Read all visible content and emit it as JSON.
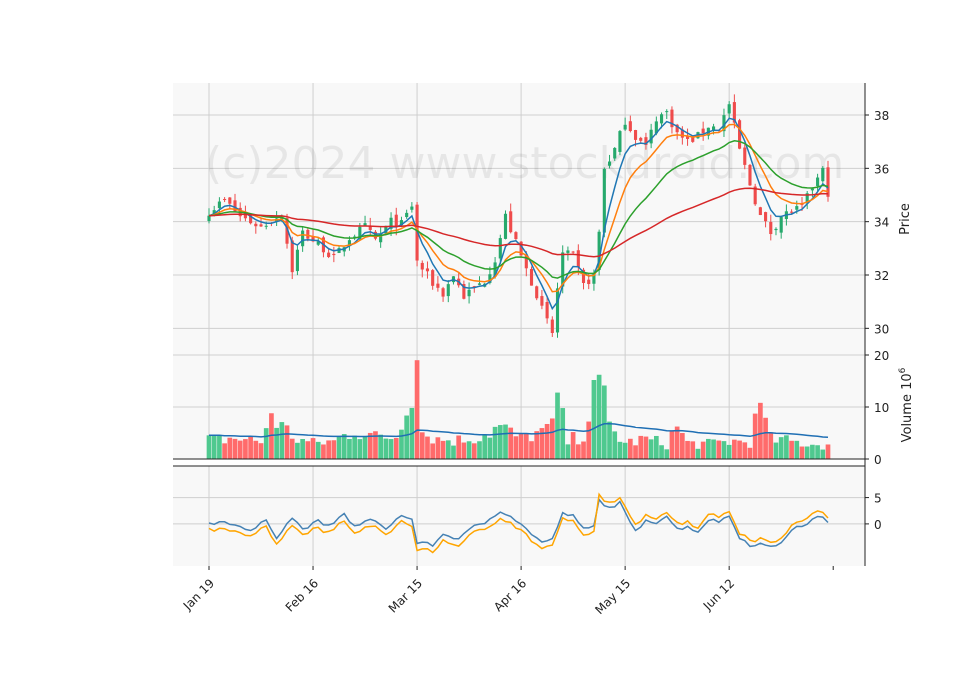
{
  "watermark": "(c)2024 www.stockdroid.com",
  "colors": {
    "panel_bg": "#f8f8f8",
    "grid": "#cfcfcf",
    "up": "#26a96c",
    "down": "#ef4b4b",
    "up_volume": "#4fc98f",
    "down_volume": "#ff6b6b",
    "ma_fast": "#1f77b4",
    "ma_mid": "#ff7f0e",
    "ma_slow": "#2ca02c",
    "ma_long": "#d62728",
    "volume_avg": "#1f6fb4",
    "osc_1": "#4682b4",
    "osc_2": "#ffa500"
  },
  "chart_data": {
    "type": "candlestick",
    "x_tick_labels": [
      "Jan 19",
      "Feb 16",
      "Mar 15",
      "Apr 16",
      "May 15",
      "Jun 12"
    ],
    "x_tick_index": [
      0,
      20,
      40,
      60,
      80,
      100
    ],
    "n_bars": 120,
    "price_panel": {
      "ylabel": "Price",
      "ylim": [
        29.0,
        39.2
      ],
      "yticks": [
        "30",
        "32",
        "34",
        "36",
        "38"
      ],
      "ytick_values": [
        30,
        32,
        34,
        36,
        38
      ]
    },
    "volume_panel": {
      "ylabel": "Volume  10",
      "ylabel_exponent": "6",
      "ylim": [
        0,
        20
      ],
      "yticks": [
        "0",
        "10",
        "20"
      ],
      "ytick_values": [
        0,
        10,
        20
      ]
    },
    "osc_panel": {
      "ylim": [
        -8,
        11
      ],
      "yticks": [
        "0",
        "5"
      ],
      "ytick_values": [
        0,
        5
      ]
    },
    "close_anchors": [
      [
        0,
        34.4
      ],
      [
        3,
        34.8
      ],
      [
        6,
        34.2
      ],
      [
        10,
        33.8
      ],
      [
        14,
        34.3
      ],
      [
        15,
        33.2
      ],
      [
        16,
        32.2
      ],
      [
        18,
        33.6
      ],
      [
        20,
        33.3
      ],
      [
        22,
        33.0
      ],
      [
        24,
        32.6
      ],
      [
        27,
        33.4
      ],
      [
        30,
        33.8
      ],
      [
        32,
        33.3
      ],
      [
        35,
        34.0
      ],
      [
        37,
        33.9
      ],
      [
        39,
        34.6
      ],
      [
        40,
        32.5
      ],
      [
        43,
        31.7
      ],
      [
        45,
        31.3
      ],
      [
        47,
        32.0
      ],
      [
        49,
        31.2
      ],
      [
        51,
        31.5
      ],
      [
        53,
        31.8
      ],
      [
        55,
        32.6
      ],
      [
        57,
        34.2
      ],
      [
        59,
        33.2
      ],
      [
        61,
        32.2
      ],
      [
        63,
        31.3
      ],
      [
        64,
        30.7
      ],
      [
        66,
        29.8
      ],
      [
        67,
        31.5
      ],
      [
        68,
        32.8
      ],
      [
        70,
        32.7
      ],
      [
        72,
        31.6
      ],
      [
        74,
        32.0
      ],
      [
        75,
        33.6
      ],
      [
        76,
        36.0
      ],
      [
        78,
        36.7
      ],
      [
        80,
        37.8
      ],
      [
        82,
        37.2
      ],
      [
        84,
        36.8
      ],
      [
        86,
        37.9
      ],
      [
        88,
        38.1
      ],
      [
        90,
        37.3
      ],
      [
        92,
        37.0
      ],
      [
        94,
        37.2
      ],
      [
        96,
        37.6
      ],
      [
        98,
        37.5
      ],
      [
        100,
        38.4
      ],
      [
        102,
        36.7
      ],
      [
        104,
        35.4
      ],
      [
        106,
        34.2
      ],
      [
        108,
        33.6
      ],
      [
        110,
        34.2
      ],
      [
        112,
        34.4
      ],
      [
        114,
        34.5
      ],
      [
        116,
        35.3
      ],
      [
        118,
        35.9
      ],
      [
        119,
        35.1
      ]
    ],
    "volume_anchors": [
      [
        0,
        3.8
      ],
      [
        5,
        4.2
      ],
      [
        10,
        3.5
      ],
      [
        12,
        9.0
      ],
      [
        14,
        6.5
      ],
      [
        17,
        4.0
      ],
      [
        20,
        3.2
      ],
      [
        24,
        3.6
      ],
      [
        28,
        6.0
      ],
      [
        32,
        4.4
      ],
      [
        36,
        4.6
      ],
      [
        40,
        19.0
      ],
      [
        41,
        5.5
      ],
      [
        44,
        4.0
      ],
      [
        48,
        3.8
      ],
      [
        52,
        4.6
      ],
      [
        56,
        6.5
      ],
      [
        60,
        4.0
      ],
      [
        62,
        5.0
      ],
      [
        65,
        5.5
      ],
      [
        67,
        10.0
      ],
      [
        69,
        3.5
      ],
      [
        72,
        5.0
      ],
      [
        75,
        16.5
      ],
      [
        77,
        6.5
      ],
      [
        80,
        3.2
      ],
      [
        84,
        4.0
      ],
      [
        88,
        3.0
      ],
      [
        90,
        6.5
      ],
      [
        92,
        3.2
      ],
      [
        96,
        3.0
      ],
      [
        100,
        3.6
      ],
      [
        104,
        3.5
      ],
      [
        106,
        11.0
      ],
      [
        108,
        4.0
      ],
      [
        112,
        3.5
      ],
      [
        116,
        3.0
      ],
      [
        119,
        2.8
      ]
    ],
    "big_volume_bars": [
      [
        40,
        19.0
      ],
      [
        75,
        16.2
      ],
      [
        106,
        10.8
      ],
      [
        68,
        9.8
      ],
      [
        12,
        8.8
      ]
    ],
    "osc_anchors": [
      [
        0,
        0.0
      ],
      [
        3,
        0.5
      ],
      [
        6,
        -0.5
      ],
      [
        8,
        -1.5
      ],
      [
        11,
        0.8
      ],
      [
        13,
        -2.5
      ],
      [
        16,
        1.2
      ],
      [
        18,
        -1.0
      ],
      [
        21,
        0.5
      ],
      [
        23,
        -0.5
      ],
      [
        26,
        1.8
      ],
      [
        28,
        -0.5
      ],
      [
        31,
        0.8
      ],
      [
        34,
        -0.8
      ],
      [
        37,
        1.6
      ],
      [
        39,
        0.8
      ],
      [
        40,
        -3.5
      ],
      [
        43,
        -4.0
      ],
      [
        45,
        -2.0
      ],
      [
        48,
        -2.8
      ],
      [
        51,
        -0.5
      ],
      [
        53,
        0.2
      ],
      [
        56,
        2.5
      ],
      [
        58,
        1.5
      ],
      [
        61,
        -1.0
      ],
      [
        64,
        -3.5
      ],
      [
        66,
        -3.0
      ],
      [
        68,
        2.0
      ],
      [
        70,
        1.5
      ],
      [
        72,
        -1.0
      ],
      [
        74,
        -0.5
      ],
      [
        75,
        4.5
      ],
      [
        77,
        3.0
      ],
      [
        79,
        4.0
      ],
      [
        80,
        2.0
      ],
      [
        82,
        -1.5
      ],
      [
        84,
        0.8
      ],
      [
        86,
        0.3
      ],
      [
        88,
        1.5
      ],
      [
        90,
        -1.0
      ],
      [
        92,
        -0.5
      ],
      [
        94,
        -1.5
      ],
      [
        96,
        0.8
      ],
      [
        98,
        0.5
      ],
      [
        100,
        1.5
      ],
      [
        102,
        -2.5
      ],
      [
        104,
        -4.0
      ],
      [
        106,
        -3.8
      ],
      [
        108,
        -4.5
      ],
      [
        110,
        -3.5
      ],
      [
        112,
        -1.0
      ],
      [
        114,
        -0.5
      ],
      [
        116,
        0.8
      ],
      [
        118,
        1.5
      ],
      [
        119,
        0.3
      ]
    ],
    "osc_offset": -1.2
  }
}
